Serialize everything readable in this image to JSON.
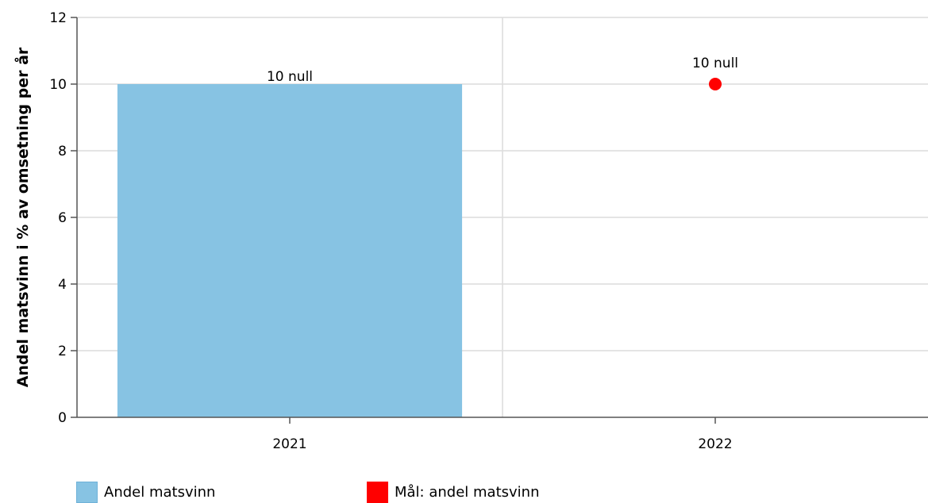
{
  "chart_data": {
    "type": "bar",
    "categories": [
      "2021",
      "2022"
    ],
    "ylabel": "Andel matsvinn i % av omsetning per år",
    "ylim": [
      0,
      12
    ],
    "yticks": [
      0,
      2,
      4,
      6,
      8,
      10,
      12
    ],
    "grid": true,
    "legend_position": "bottom-left",
    "series": [
      {
        "name": "Andel matsvinn",
        "kind": "bar",
        "color": "#87c3e3",
        "values": [
          10,
          null
        ],
        "labels": [
          "10 null",
          ""
        ]
      },
      {
        "name": "Mål: andel matsvinn",
        "kind": "point",
        "color": "#ff0000",
        "values": [
          null,
          10
        ],
        "labels": [
          "",
          "10 null"
        ]
      }
    ]
  }
}
